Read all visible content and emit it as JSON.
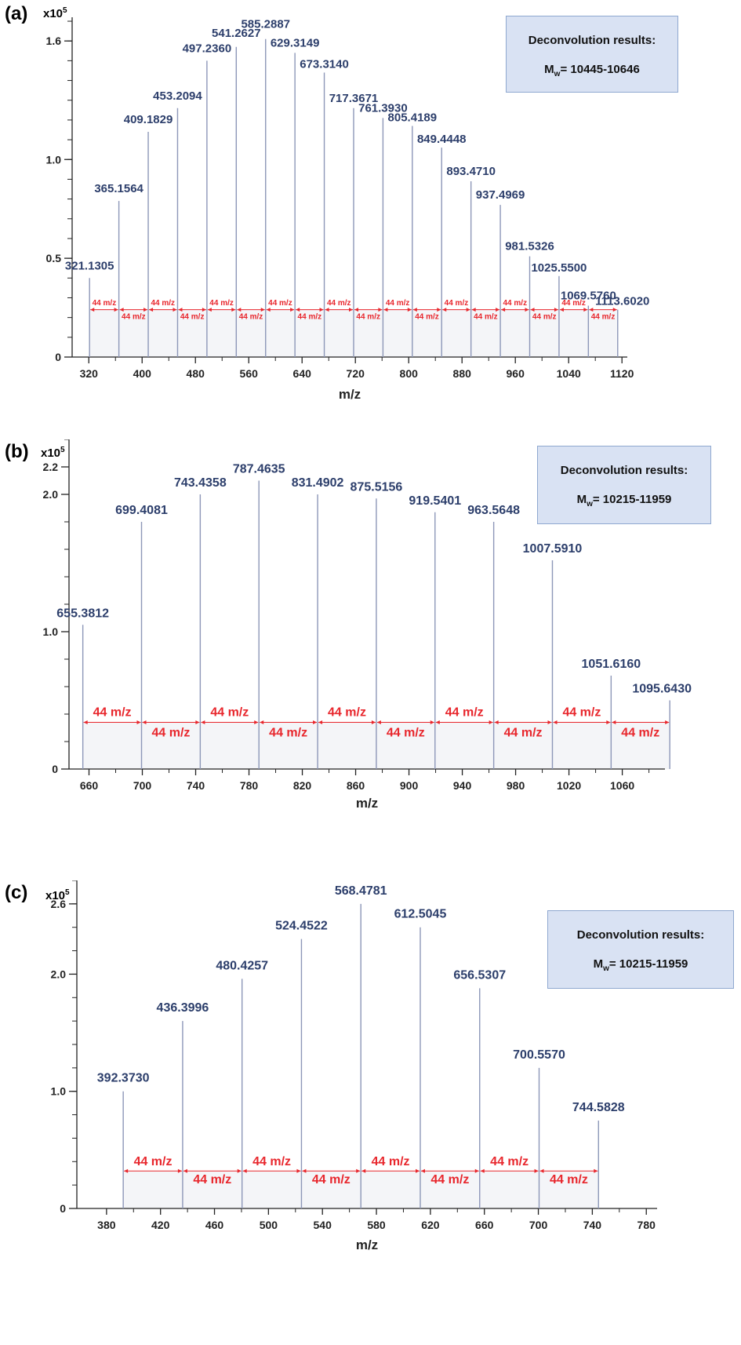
{
  "chart_data": [
    {
      "panel_label": "(a)",
      "type": "bar",
      "y_multiplier_base": "x10",
      "y_multiplier_exp": "5",
      "xlabel": "m/z",
      "ylabel": "",
      "xlim": [
        295,
        1128
      ],
      "ylim": [
        0,
        1.72
      ],
      "xticks": [
        320,
        400,
        480,
        560,
        640,
        720,
        800,
        880,
        960,
        1040,
        1120
      ],
      "yticks": [
        0,
        0.5,
        1.0,
        1.6
      ],
      "ytick_labels": [
        "0",
        "0.5",
        "1.0",
        "1.6"
      ],
      "y_minor_step": 0.1,
      "peaks": [
        {
          "x": 321.1305,
          "y": 0.4,
          "label": "321.1305"
        },
        {
          "x": 365.1564,
          "y": 0.79,
          "label": "365.1564"
        },
        {
          "x": 409.1829,
          "y": 1.14,
          "label": "409.1829"
        },
        {
          "x": 453.2094,
          "y": 1.26,
          "label": "453.2094"
        },
        {
          "x": 497.236,
          "y": 1.5,
          "label": "497.2360"
        },
        {
          "x": 541.2627,
          "y": 1.57,
          "label": "541.2627"
        },
        {
          "x": 585.2887,
          "y": 1.61,
          "label": "585.2887"
        },
        {
          "x": 629.3149,
          "y": 1.54,
          "label": "629.3149"
        },
        {
          "x": 673.314,
          "y": 1.44,
          "label": "673.3140"
        },
        {
          "x": 717.3671,
          "y": 1.26,
          "label": "717.3671"
        },
        {
          "x": 761.393,
          "y": 1.21,
          "label": "761.3930"
        },
        {
          "x": 805.4189,
          "y": 1.17,
          "label": "805.4189"
        },
        {
          "x": 849.4448,
          "y": 1.06,
          "label": "849.4448"
        },
        {
          "x": 893.471,
          "y": 0.89,
          "label": "893.4710"
        },
        {
          "x": 937.4969,
          "y": 0.77,
          "label": "937.4969"
        },
        {
          "x": 981.5326,
          "y": 0.51,
          "label": "981.5326"
        },
        {
          "x": 1025.55,
          "y": 0.41,
          "label": "1025.5500"
        },
        {
          "x": 1069.576,
          "y": 0.26,
          "label": "1069.5760"
        },
        {
          "x": 1113.602,
          "y": 0.24,
          "label": "1113.6020"
        }
      ],
      "label_dy": [
        11,
        11,
        11,
        11,
        11,
        13,
        14,
        8,
        6,
        8,
        8,
        6,
        6,
        8,
        8,
        8,
        6,
        8,
        6
      ],
      "label_dx": [
        0,
        0,
        0,
        0,
        0,
        0,
        0,
        0,
        0,
        0,
        0,
        0,
        0,
        0,
        0,
        0,
        0,
        0,
        6
      ],
      "spacing_label": "44 m/z",
      "spacing_y": 0.24,
      "box_title": "Deconvolution results:",
      "box_mw_prefix": "M",
      "box_mw_sub": "w",
      "box_mw_value": "= 10445-10646"
    },
    {
      "panel_label": "(b)",
      "type": "bar",
      "y_multiplier_base": "x10",
      "y_multiplier_exp": "5",
      "xlabel": "m/z",
      "ylabel": "",
      "xlim": [
        645,
        1092
      ],
      "ylim": [
        0,
        2.4
      ],
      "xticks": [
        660,
        700,
        740,
        780,
        820,
        860,
        900,
        940,
        980,
        1020,
        1060
      ],
      "yticks": [
        0,
        1.0,
        2.0,
        2.2
      ],
      "ytick_labels": [
        "0",
        "1.0",
        "2.0",
        "2.2"
      ],
      "y_minor_step": 0.2,
      "peaks": [
        {
          "x": 655.3812,
          "y": 1.05,
          "label": "655.3812"
        },
        {
          "x": 699.4081,
          "y": 1.8,
          "label": "699.4081"
        },
        {
          "x": 743.4358,
          "y": 2.0,
          "label": "743.4358"
        },
        {
          "x": 787.4635,
          "y": 2.1,
          "label": "787.4635"
        },
        {
          "x": 831.4902,
          "y": 2.0,
          "label": "831.4902"
        },
        {
          "x": 875.5156,
          "y": 1.97,
          "label": "875.5156"
        },
        {
          "x": 919.5401,
          "y": 1.87,
          "label": "919.5401"
        },
        {
          "x": 963.5648,
          "y": 1.8,
          "label": "963.5648"
        },
        {
          "x": 1007.591,
          "y": 1.52,
          "label": "1007.5910"
        },
        {
          "x": 1051.616,
          "y": 0.68,
          "label": "1051.6160"
        },
        {
          "x": 1095.643,
          "y": 0.5,
          "label": "1095.6430"
        }
      ],
      "label_dy": [
        10,
        10,
        10,
        10,
        10,
        10,
        10,
        10,
        10,
        10,
        10
      ],
      "label_dx": [
        0,
        0,
        0,
        0,
        0,
        0,
        0,
        0,
        0,
        0,
        -10
      ],
      "spacing_label": "44 m/z",
      "spacing_y": 0.34,
      "box_title": "Deconvolution results:",
      "box_mw_prefix": "M",
      "box_mw_sub": "w",
      "box_mw_value": "= 10215-11959"
    },
    {
      "panel_label": "(c)",
      "type": "bar",
      "y_multiplier_base": "x10",
      "y_multiplier_exp": "5",
      "xlabel": "m/z",
      "ylabel": "",
      "xlim": [
        358,
        788
      ],
      "ylim": [
        0,
        2.8
      ],
      "xticks": [
        380,
        420,
        460,
        500,
        540,
        580,
        620,
        660,
        700,
        740,
        780
      ],
      "yticks": [
        0,
        1.0,
        2.0,
        2.6
      ],
      "ytick_labels": [
        "0",
        "1.0",
        "2.0",
        "2.6"
      ],
      "y_minor_step": 0.2,
      "peaks": [
        {
          "x": 392.373,
          "y": 1.0,
          "label": "392.3730"
        },
        {
          "x": 436.3996,
          "y": 1.6,
          "label": "436.3996"
        },
        {
          "x": 480.4257,
          "y": 1.96,
          "label": "480.4257"
        },
        {
          "x": 524.4522,
          "y": 2.3,
          "label": "524.4522"
        },
        {
          "x": 568.4781,
          "y": 2.6,
          "label": "568.4781"
        },
        {
          "x": 612.5045,
          "y": 2.4,
          "label": "612.5045"
        },
        {
          "x": 656.5307,
          "y": 1.88,
          "label": "656.5307"
        },
        {
          "x": 700.557,
          "y": 1.2,
          "label": "700.5570"
        },
        {
          "x": 744.5828,
          "y": 0.75,
          "label": "744.5828"
        }
      ],
      "label_dy": [
        12,
        12,
        12,
        12,
        12,
        12,
        12,
        12,
        12
      ],
      "label_dx": [
        0,
        0,
        0,
        0,
        0,
        0,
        0,
        0,
        0
      ],
      "spacing_label": "44 m/z",
      "spacing_y": 0.32,
      "box_title": "Deconvolution results:",
      "box_mw_prefix": "M",
      "box_mw_sub": "w",
      "box_mw_value": "= 10215-11959"
    }
  ]
}
